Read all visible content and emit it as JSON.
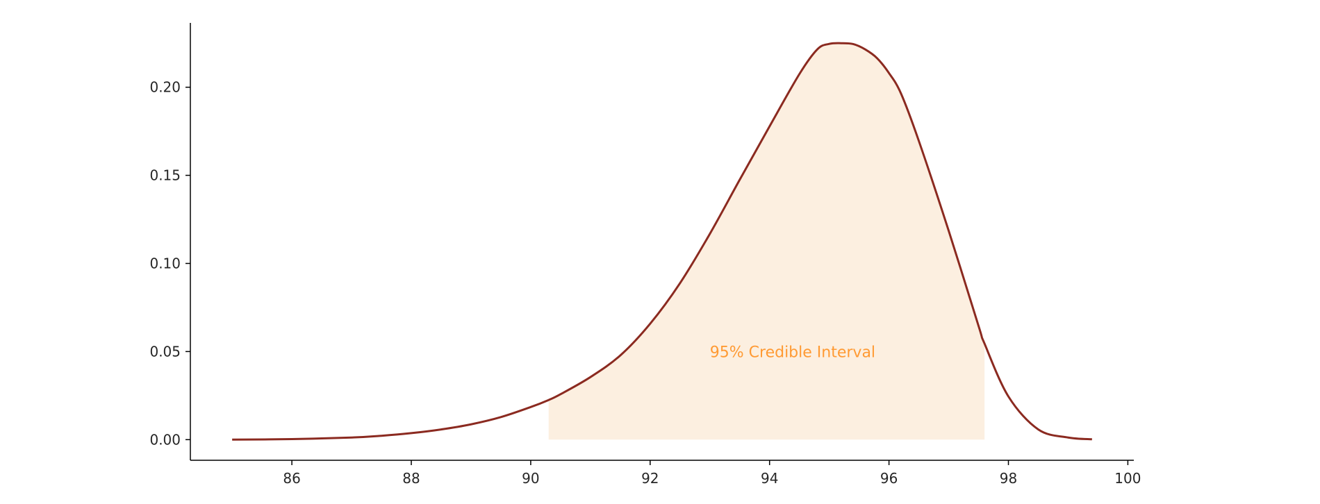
{
  "chart_data": {
    "type": "area",
    "title": "",
    "xlabel": "",
    "ylabel": "",
    "xlim": [
      84.3,
      100.1
    ],
    "ylim": [
      -0.0117,
      0.2365
    ],
    "xticks": [
      86,
      88,
      90,
      92,
      94,
      96,
      98,
      100
    ],
    "xtick_labels": [
      "86",
      "88",
      "90",
      "92",
      "94",
      "96",
      "98",
      "100"
    ],
    "yticks": [
      0.0,
      0.05,
      0.1,
      0.15,
      0.2
    ],
    "ytick_labels": [
      "0.00",
      "0.05",
      "0.10",
      "0.15",
      "0.20"
    ],
    "grid": false,
    "series": [
      {
        "x": [
          85.0,
          86.0,
          87.0,
          87.5,
          88.0,
          88.5,
          89.0,
          89.5,
          90.0,
          90.3,
          90.5,
          91.0,
          91.5,
          92.0,
          92.5,
          93.0,
          93.5,
          94.0,
          94.5,
          94.8,
          95.0,
          95.2,
          95.4,
          95.6,
          95.8,
          96.0,
          96.2,
          96.5,
          97.0,
          97.5,
          97.6,
          98.0,
          98.5,
          99.0,
          99.4
        ],
        "y": [
          0.0,
          0.0003,
          0.0012,
          0.0022,
          0.0037,
          0.0058,
          0.0087,
          0.0128,
          0.0185,
          0.0225,
          0.0258,
          0.0355,
          0.0478,
          0.0658,
          0.0888,
          0.1168,
          0.1475,
          0.1778,
          0.2075,
          0.2215,
          0.2246,
          0.225,
          0.2245,
          0.2215,
          0.2165,
          0.208,
          0.1965,
          0.1695,
          0.1185,
          0.0645,
          0.0545,
          0.0245,
          0.0058,
          0.0012,
          0.0002
        ],
        "color": "#8b2a20"
      }
    ],
    "shaded_region": {
      "x_start": 90.3,
      "x_end": 97.6,
      "color": "#fcefe0"
    },
    "annotation": {
      "text": "95% Credible Interval",
      "x": 93.0,
      "y": 0.05,
      "color": "#ff9a33"
    }
  }
}
